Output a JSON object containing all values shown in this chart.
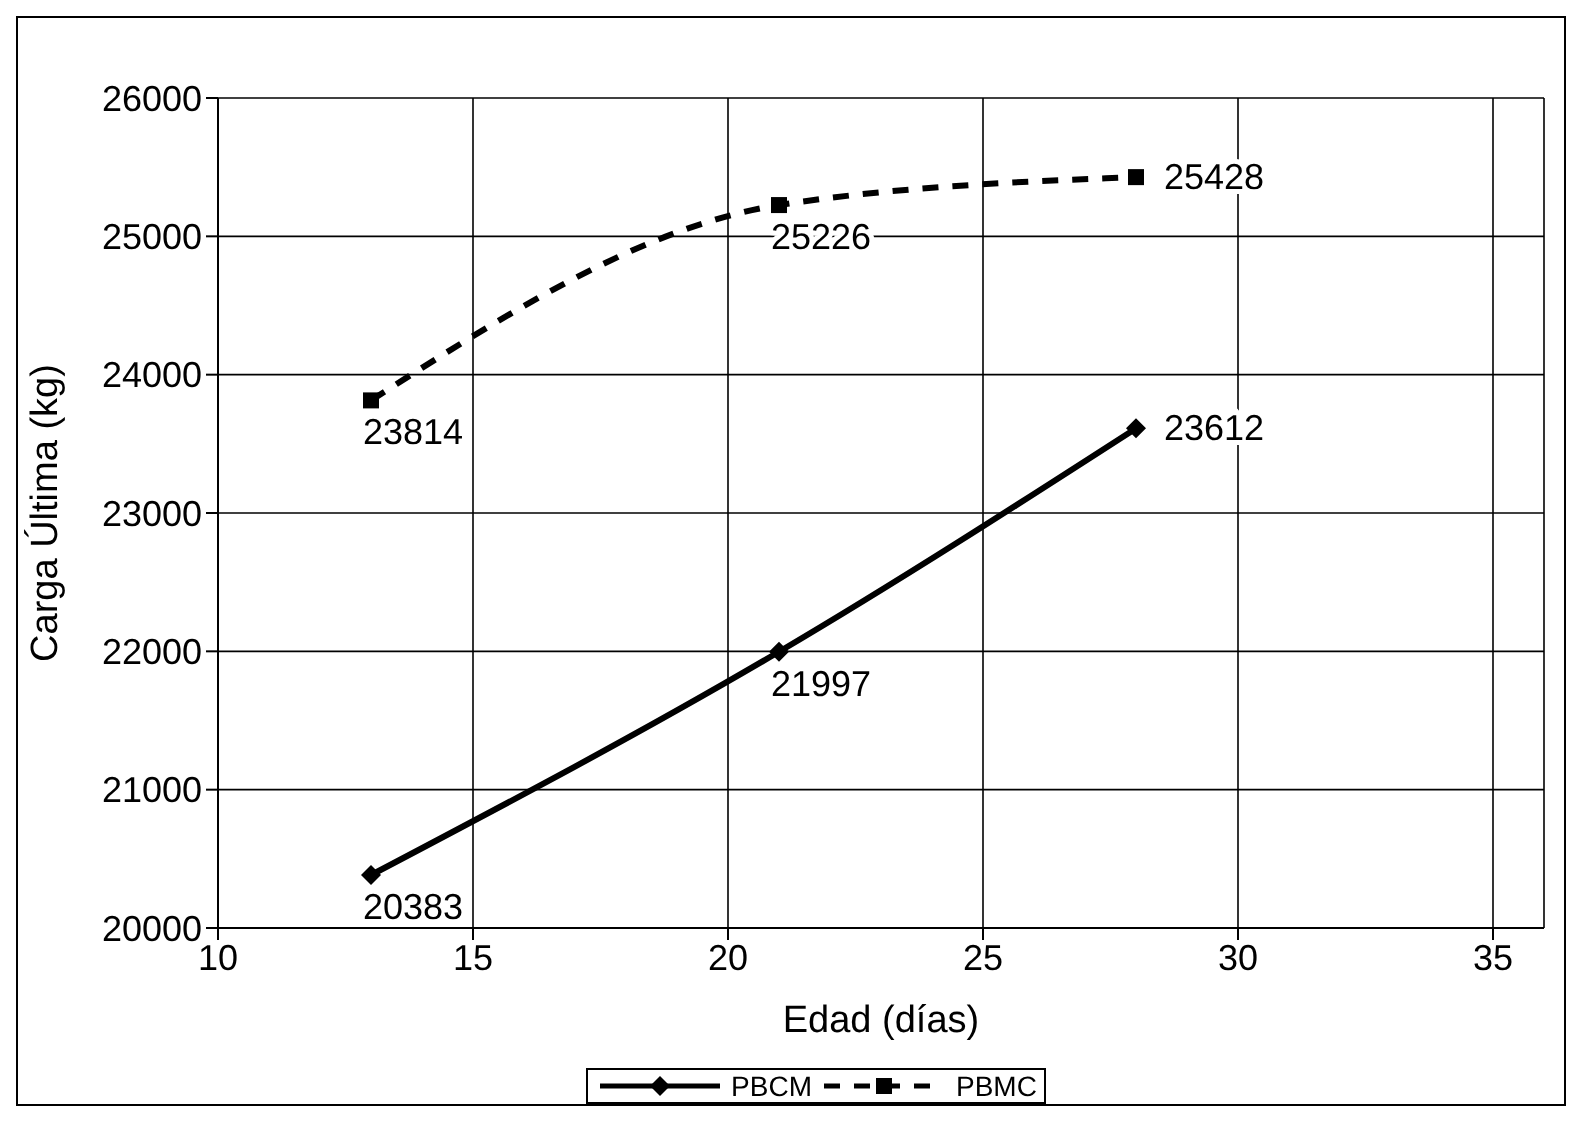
{
  "chart_data": {
    "type": "line",
    "xlabel": "Edad (días)",
    "ylabel": "Carga Última (kg)",
    "xlim": [
      10,
      36
    ],
    "xticks": [
      10,
      15,
      20,
      25,
      30,
      35
    ],
    "ylim": [
      20000,
      26000
    ],
    "yticks": [
      20000,
      21000,
      22000,
      23000,
      24000,
      25000,
      26000
    ],
    "grid": true,
    "legend": "bottom",
    "data_labels": true,
    "series": [
      {
        "name": "PBCM",
        "color": "#000000",
        "x": [
          13,
          21,
          28
        ],
        "values": [
          20383,
          21997,
          23612
        ],
        "marker": "diamond",
        "line_style": "solid"
      },
      {
        "name": "PBMC",
        "color": "#000000",
        "x": [
          13,
          21,
          28
        ],
        "values": [
          23814,
          25226,
          25428
        ],
        "marker": "square",
        "line_style": "dashed"
      }
    ]
  }
}
